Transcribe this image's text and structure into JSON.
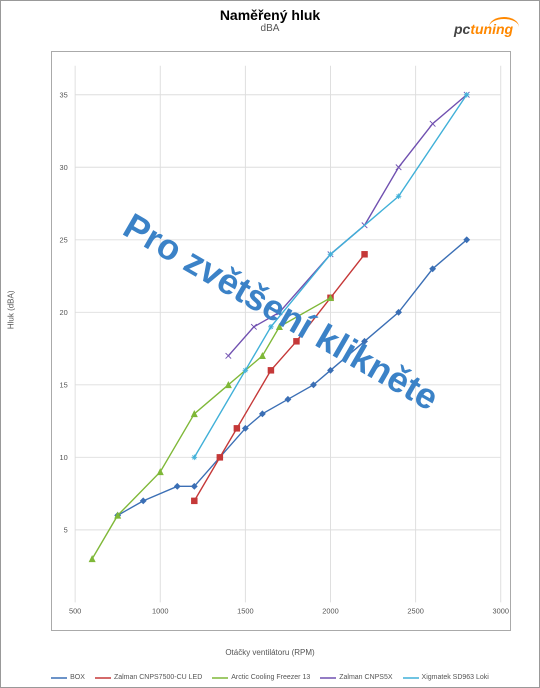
{
  "title": "Naměřený hluk",
  "subtitle": "dBA",
  "logo_text1": "pc",
  "logo_text2": "tuning",
  "xlabel": "Otáčky ventilátoru (RPM)",
  "ylabel": "Hluk (dBA)",
  "watermark": "Pro zvětšení klikněte",
  "chart": {
    "type": "line",
    "xlim": [
      500,
      3000
    ],
    "ylim": [
      0,
      37
    ],
    "xtick_step": 500,
    "ytick_step": 5,
    "background_color": "#ffffff",
    "grid_color": "#dddddd",
    "series": [
      {
        "name": "BOX",
        "color": "#3b6fb5",
        "marker": "diamond",
        "data": [
          [
            750,
            6
          ],
          [
            900,
            7
          ],
          [
            1100,
            8
          ],
          [
            1200,
            8
          ],
          [
            1350,
            10
          ],
          [
            1500,
            12
          ],
          [
            1600,
            13
          ],
          [
            1750,
            14
          ],
          [
            1900,
            15
          ],
          [
            2000,
            16
          ],
          [
            2200,
            18
          ],
          [
            2400,
            20
          ],
          [
            2600,
            23
          ],
          [
            2800,
            25
          ]
        ]
      },
      {
        "name": "Zalman CNPS7500-CU LED",
        "color": "#c53838",
        "marker": "square",
        "data": [
          [
            1200,
            7
          ],
          [
            1350,
            10
          ],
          [
            1450,
            12
          ],
          [
            1650,
            16
          ],
          [
            1800,
            18
          ],
          [
            2000,
            21
          ],
          [
            2200,
            24
          ]
        ]
      },
      {
        "name": "Arctic Cooling Freezer 13",
        "color": "#7fb838",
        "marker": "triangle",
        "data": [
          [
            600,
            3
          ],
          [
            750,
            6
          ],
          [
            1000,
            9
          ],
          [
            1200,
            13
          ],
          [
            1400,
            15
          ],
          [
            1600,
            17
          ],
          [
            1700,
            19
          ],
          [
            2000,
            21
          ]
        ]
      },
      {
        "name": "Zalman CNPS5X",
        "color": "#7050b0",
        "marker": "x",
        "data": [
          [
            1400,
            17
          ],
          [
            1550,
            19
          ],
          [
            1700,
            20
          ],
          [
            2000,
            24
          ],
          [
            2200,
            26
          ],
          [
            2400,
            30
          ],
          [
            2600,
            33
          ],
          [
            2800,
            35
          ]
        ]
      },
      {
        "name": "Xigmatek SD963 Loki",
        "color": "#40b0d8",
        "marker": "star",
        "data": [
          [
            1200,
            10
          ],
          [
            1500,
            16
          ],
          [
            1650,
            19
          ],
          [
            2000,
            24
          ],
          [
            2400,
            28
          ],
          [
            2800,
            35
          ]
        ]
      }
    ]
  }
}
